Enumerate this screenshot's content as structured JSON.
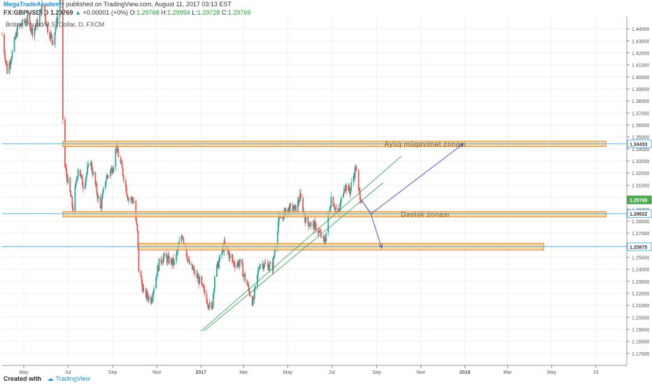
{
  "header": {
    "author": "MegaTradeAcademy",
    "published_text": "published on TradingView.com, August 11, 2017 03:13 EST",
    "symbol": "FX:GBPUSD, D",
    "last": "1.29769",
    "change": "+0.00001 (+0%)",
    "o_label": "O:",
    "o_value": "1.29768",
    "h_label": "H:",
    "h_value": "1.29994",
    "l_label": "L:",
    "l_value": "1.29728",
    "c_label": "C:",
    "c_value": "1.29769"
  },
  "legend": "British Pound/U.S. Dollar, D, FXCM",
  "footer": {
    "created_with": "Created with",
    "brand": "TradingView"
  },
  "colors": {
    "up": "#26a69a",
    "down": "#ef5350",
    "zone_fill": "#f8c98a",
    "zone_stroke": "#d8892a",
    "hline": "#5ab4dc",
    "trend": "#3aa35a",
    "arrow": "#5257b8",
    "grid": "#eef1f3"
  },
  "chart_data": {
    "type": "candlestick",
    "symbol": "GBPUSD",
    "ylim": [
      1.16,
      1.45
    ],
    "y_ticks": [
      "1.17000",
      "1.18000",
      "1.19000",
      "1.20000",
      "1.21000",
      "1.22000",
      "1.23000",
      "1.24000",
      "1.25000",
      "1.26000",
      "1.27000",
      "1.28000",
      "1.29000",
      "1.30000",
      "1.31000",
      "1.32000",
      "1.33000",
      "1.34000",
      "1.35000",
      "1.36000",
      "1.37000",
      "1.38000",
      "1.39000",
      "1.40000",
      "1.41000",
      "1.42000",
      "1.43000",
      "1.44000"
    ],
    "x_ticks": [
      "May",
      "Jul",
      "Sep",
      "Nov",
      "2017",
      "Mar",
      "May",
      "Jul",
      "Sep",
      "Nov",
      "2018",
      "Mar",
      "May",
      "15"
    ],
    "price_labels": [
      {
        "text": "1.34433",
        "value": 1.34433,
        "style": "zone"
      },
      {
        "text": "1.29769",
        "value": 1.29769,
        "style": "last"
      },
      {
        "text": "1.28622",
        "value": 1.28622,
        "style": "zone"
      },
      {
        "text": "1.25875",
        "value": 1.25875,
        "style": "zone"
      }
    ],
    "zones": [
      {
        "label": "Aylıq müqavimət zonası",
        "top": 1.3465,
        "bottom": 1.342,
        "start": "2016-06-24",
        "end": "2018-07-15"
      },
      {
        "label": "Dəstək zonası",
        "top": 1.288,
        "bottom": 1.2835,
        "start": "2016-06-24",
        "end": "2018-07-15"
      },
      {
        "label": "",
        "top": 1.2615,
        "bottom": 1.256,
        "start": "2016-10-07",
        "end": "2018-04-20"
      }
    ],
    "hlines": [
      1.34433,
      1.28622,
      1.25875
    ],
    "trendlines": [
      {
        "x1": "2017-01-01",
        "y1": 1.1885,
        "x2": "2017-10-05",
        "y2": 1.334
      },
      {
        "x1": "2017-01-05",
        "y1": 1.1885,
        "x2": "2017-09-10",
        "y2": 1.312
      }
    ],
    "projection": {
      "start": {
        "x": "2017-08-11",
        "y": 1.2977
      },
      "up_path": [
        {
          "x": "2017-08-24",
          "y": 1.286
        },
        {
          "x": "2017-12-30",
          "y": 1.3445
        }
      ],
      "down_path": [
        {
          "x": "2017-08-24",
          "y": 1.286
        },
        {
          "x": "2017-09-08",
          "y": 1.2575
        }
      ]
    },
    "anchors": [
      {
        "date": "2016-04-01",
        "close": 1.435
      },
      {
        "date": "2016-04-08",
        "close": 1.405
      },
      {
        "date": "2016-04-15",
        "close": 1.42
      },
      {
        "date": "2016-04-22",
        "close": 1.44
      },
      {
        "date": "2016-05-06",
        "close": 1.448
      },
      {
        "date": "2016-05-13",
        "close": 1.438
      },
      {
        "date": "2016-05-20",
        "close": 1.445
      },
      {
        "date": "2016-05-27",
        "close": 1.46
      },
      {
        "date": "2016-06-03",
        "close": 1.44
      },
      {
        "date": "2016-06-10",
        "close": 1.43
      },
      {
        "date": "2016-06-17",
        "close": 1.45
      },
      {
        "date": "2016-06-23",
        "close": 1.478
      },
      {
        "date": "2016-06-24",
        "close": 1.365
      },
      {
        "date": "2016-06-27",
        "close": 1.325
      },
      {
        "date": "2016-07-05",
        "close": 1.3
      },
      {
        "date": "2016-07-08",
        "close": 1.29
      },
      {
        "date": "2016-07-15",
        "close": 1.325
      },
      {
        "date": "2016-07-22",
        "close": 1.31
      },
      {
        "date": "2016-08-01",
        "close": 1.33
      },
      {
        "date": "2016-08-15",
        "close": 1.29
      },
      {
        "date": "2016-08-22",
        "close": 1.315
      },
      {
        "date": "2016-09-01",
        "close": 1.325
      },
      {
        "date": "2016-09-06",
        "close": 1.342
      },
      {
        "date": "2016-09-15",
        "close": 1.32
      },
      {
        "date": "2016-09-22",
        "close": 1.3
      },
      {
        "date": "2016-09-30",
        "close": 1.297
      },
      {
        "date": "2016-10-05",
        "close": 1.27
      },
      {
        "date": "2016-10-07",
        "close": 1.24
      },
      {
        "date": "2016-10-14",
        "close": 1.22
      },
      {
        "date": "2016-10-24",
        "close": 1.215
      },
      {
        "date": "2016-11-04",
        "close": 1.245
      },
      {
        "date": "2016-11-10",
        "close": 1.25
      },
      {
        "date": "2016-11-25",
        "close": 1.245
      },
      {
        "date": "2016-12-06",
        "close": 1.27
      },
      {
        "date": "2016-12-15",
        "close": 1.245
      },
      {
        "date": "2016-12-30",
        "close": 1.23
      },
      {
        "date": "2017-01-16",
        "close": 1.205
      },
      {
        "date": "2017-01-20",
        "close": 1.235
      },
      {
        "date": "2017-02-02",
        "close": 1.26
      },
      {
        "date": "2017-02-15",
        "close": 1.245
      },
      {
        "date": "2017-02-24",
        "close": 1.245
      },
      {
        "date": "2017-03-14",
        "close": 1.212
      },
      {
        "date": "2017-03-23",
        "close": 1.245
      },
      {
        "date": "2017-04-10",
        "close": 1.242
      },
      {
        "date": "2017-04-18",
        "close": 1.28
      },
      {
        "date": "2017-05-01",
        "close": 1.29
      },
      {
        "date": "2017-05-12",
        "close": 1.29
      },
      {
        "date": "2017-05-18",
        "close": 1.3
      },
      {
        "date": "2017-05-26",
        "close": 1.28
      },
      {
        "date": "2017-06-09",
        "close": 1.275
      },
      {
        "date": "2017-06-21",
        "close": 1.262
      },
      {
        "date": "2017-06-30",
        "close": 1.3
      },
      {
        "date": "2017-07-10",
        "close": 1.285
      },
      {
        "date": "2017-07-18",
        "close": 1.31
      },
      {
        "date": "2017-07-26",
        "close": 1.305
      },
      {
        "date": "2017-08-03",
        "close": 1.325
      },
      {
        "date": "2017-08-07",
        "close": 1.305
      },
      {
        "date": "2017-08-11",
        "close": 1.2977
      }
    ]
  }
}
